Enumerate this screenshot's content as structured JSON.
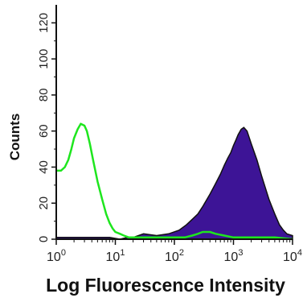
{
  "chart_data": {
    "type": "area",
    "title": "",
    "xlabel": "Log Fluorescence Intensity",
    "ylabel": "Counts",
    "x_scale": "log",
    "xlim": [
      1,
      10000
    ],
    "ylim": [
      0,
      130
    ],
    "x_ticks": [
      1,
      10,
      100,
      1000,
      10000
    ],
    "x_tick_labels": [
      {
        "base": "10",
        "exp": "0"
      },
      {
        "base": "10",
        "exp": "1"
      },
      {
        "base": "10",
        "exp": "2"
      },
      {
        "base": "10",
        "exp": "3"
      },
      {
        "base": "10",
        "exp": "4"
      }
    ],
    "y_ticks": [
      0,
      20,
      40,
      60,
      80,
      100,
      120
    ],
    "y_tick_labels": [
      "0",
      "20",
      "40",
      "60",
      "80",
      "100",
      "120"
    ],
    "grid": false,
    "legend": "none",
    "series": [
      {
        "style": "filled",
        "color": "#3d1496",
        "outline_color": "#111111",
        "x": [
          1,
          2,
          4,
          8,
          12,
          16,
          20,
          30,
          50,
          80,
          120,
          160,
          200,
          250,
          300,
          400,
          500,
          600,
          700,
          800,
          900,
          1000,
          1100,
          1200,
          1350,
          1500,
          1700,
          2000,
          2500,
          3000,
          4000,
          5000,
          6000,
          7000,
          8000,
          10000
        ],
        "y": [
          1,
          1,
          1,
          1,
          0,
          1,
          1,
          3,
          2,
          3,
          5,
          8,
          11,
          14,
          18,
          25,
          31,
          36,
          41,
          45,
          48,
          52,
          55,
          58,
          61,
          62,
          60,
          53,
          44,
          35,
          22,
          14,
          8,
          5,
          3,
          2
        ]
      },
      {
        "style": "line",
        "color": "#1ee61e",
        "x": [
          1,
          1.2,
          1.4,
          1.6,
          1.8,
          2,
          2.3,
          2.6,
          3,
          3.3,
          3.7,
          4.2,
          5,
          6,
          7,
          8,
          9,
          10,
          12,
          14,
          17,
          20,
          30,
          50,
          100,
          150,
          200,
          250,
          300,
          400,
          500,
          700,
          1000,
          2000,
          5000,
          10000
        ],
        "y": [
          38,
          38,
          40,
          44,
          50,
          56,
          61,
          64,
          63,
          60,
          53,
          44,
          32,
          22,
          14,
          9,
          6,
          4,
          3,
          2,
          1,
          1,
          1,
          1,
          1,
          1,
          2,
          3,
          4,
          4,
          3,
          2,
          1,
          1,
          1,
          0
        ]
      }
    ]
  }
}
